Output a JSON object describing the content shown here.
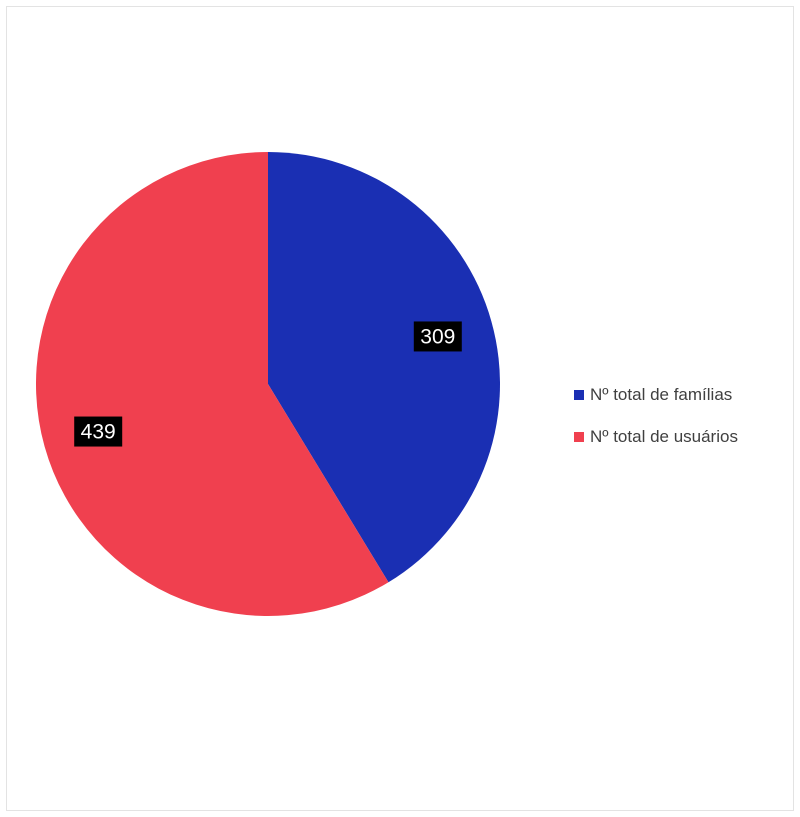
{
  "chart_data": {
    "type": "pie",
    "title": "",
    "slices": [
      {
        "label": "Nº total de famílias",
        "value": 309,
        "color": "#1a2fb3"
      },
      {
        "label": "Nº total de usuários",
        "value": 439,
        "color": "#f0404f"
      }
    ],
    "start_angle": "12 o'clock",
    "direction": "clockwise",
    "data_labels": true,
    "legend_position": "right"
  }
}
